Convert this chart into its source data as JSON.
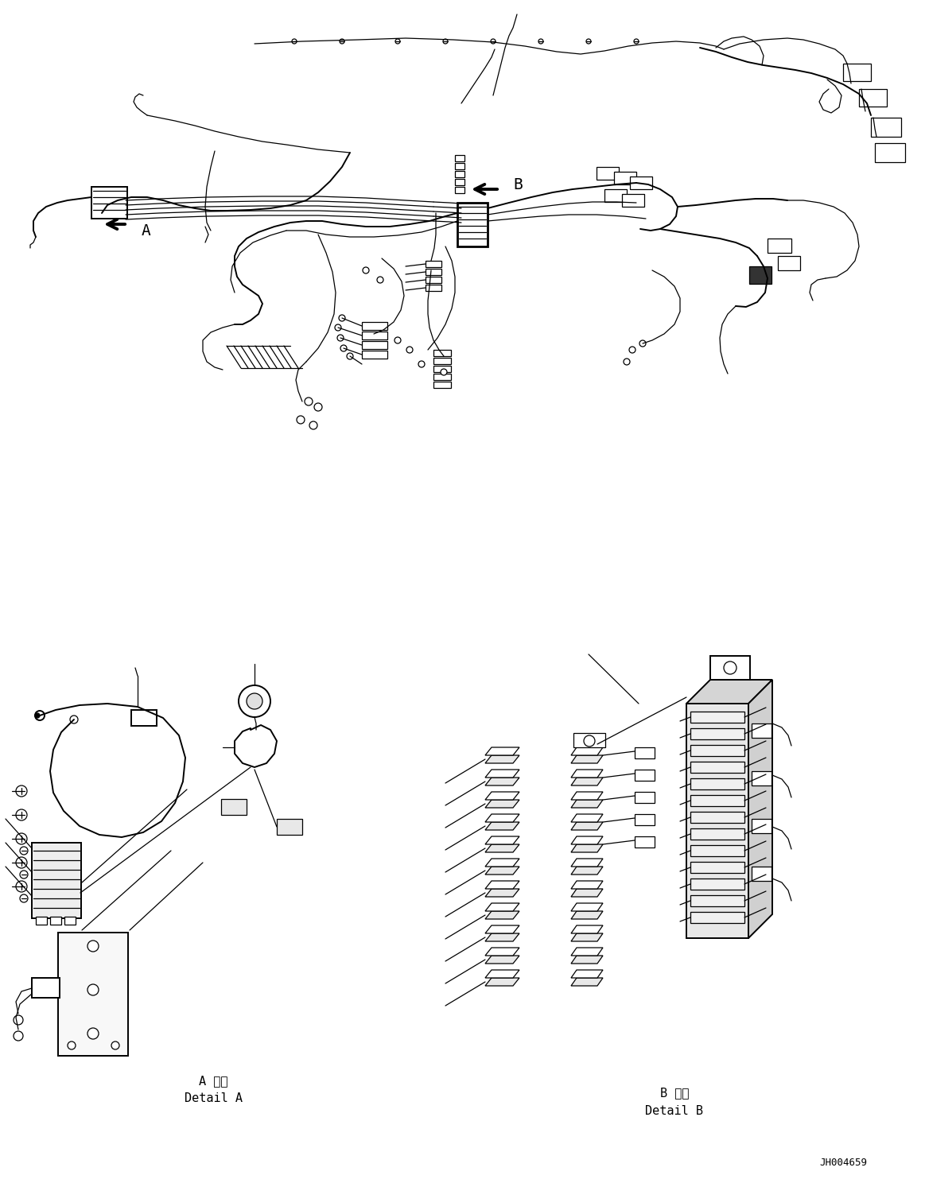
{
  "doc_number": "JH004659",
  "detail_a_jp": "A 詳細",
  "detail_a_en": "Detail A",
  "detail_b_jp": "B 詳細",
  "detail_b_en": "Detail B",
  "bg_color": "#ffffff",
  "fig_width": 11.63,
  "fig_height": 14.88,
  "dpi": 100
}
